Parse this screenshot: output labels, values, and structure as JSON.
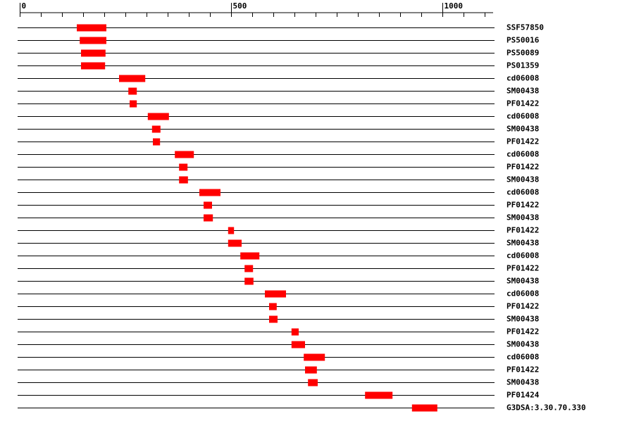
{
  "chart_data": {
    "type": "range",
    "categories": [
      "SSF57850",
      "PS50016",
      "PS50089",
      "PS01359",
      "cd06008",
      "SM00438",
      "PF01422",
      "cd06008",
      "SM00438",
      "PF01422",
      "cd06008",
      "PF01422",
      "SM00438",
      "cd06008",
      "PF01422",
      "SM00438",
      "PF01422",
      "SM00438",
      "cd06008",
      "PF01422",
      "SM00438",
      "cd06008",
      "PF01422",
      "SM00438",
      "PF01422",
      "SM00438",
      "cd06008",
      "PF01422",
      "SM00438",
      "PF01424",
      "G3DSA:3.30.70.330"
    ],
    "starts": [
      135,
      142,
      145,
      145,
      235,
      257,
      260,
      303,
      313,
      315,
      367,
      377,
      377,
      425,
      435,
      435,
      493,
      493,
      522,
      532,
      532,
      580,
      590,
      590,
      643,
      643,
      672,
      675,
      682,
      817,
      928
    ],
    "ends": [
      205,
      205,
      203,
      202,
      297,
      277,
      277,
      353,
      333,
      332,
      412,
      397,
      398,
      475,
      455,
      457,
      507,
      525,
      567,
      552,
      553,
      630,
      608,
      610,
      660,
      675,
      722,
      703,
      705,
      882,
      988
    ],
    "color": "#ff0000",
    "xlim": [
      0,
      1120
    ],
    "xticks": [
      0,
      500,
      1000
    ],
    "minor_xticks": [
      0,
      50,
      100,
      150,
      200,
      250,
      300,
      350,
      400,
      450,
      500,
      550,
      600,
      650,
      700,
      750,
      800,
      850,
      900,
      950,
      1000,
      1050,
      1100
    ]
  }
}
